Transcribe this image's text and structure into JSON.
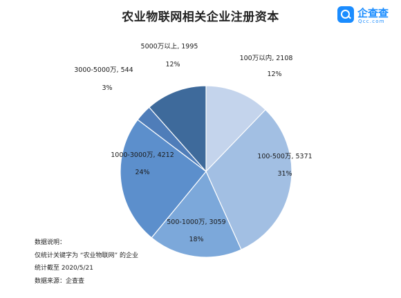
{
  "title": "农业物联网相关企业注册资本",
  "logo": {
    "name": "企查查",
    "domain": "Qcc.com"
  },
  "chart_data": {
    "type": "pie",
    "title": "农业物联网相关企业注册资本",
    "start": "top",
    "direction": "clockwise",
    "slices": [
      {
        "label": "100万以内, 2108",
        "category": "100万以内",
        "value": 2108,
        "percent": "12%",
        "color": "#c4d4ec"
      },
      {
        "label": "100-500万, 5371",
        "category": "100-500万",
        "value": 5371,
        "percent": "31%",
        "color": "#a2bfe3"
      },
      {
        "label": "500-1000万, 3059",
        "category": "500-1000万",
        "value": 3059,
        "percent": "18%",
        "color": "#7ca8da"
      },
      {
        "label": "1000-3000万, 4212",
        "category": "1000-3000万",
        "value": 4212,
        "percent": "24%",
        "color": "#5c8fcc"
      },
      {
        "label": "3000-5000万, 544",
        "category": "3000-5000万",
        "value": 544,
        "percent": "3%",
        "color": "#4f7db9"
      },
      {
        "label": "5000万以上, 1995",
        "category": "5000万以上",
        "value": 1995,
        "percent": "12%",
        "color": "#3e6a9b"
      }
    ]
  },
  "notes": {
    "heading": "数据说明：",
    "line1": "仅统计关键字为 “农业物联网” 的企业",
    "line2": "统计截至 2020/5/21",
    "line3": "数据来源：企查查"
  }
}
